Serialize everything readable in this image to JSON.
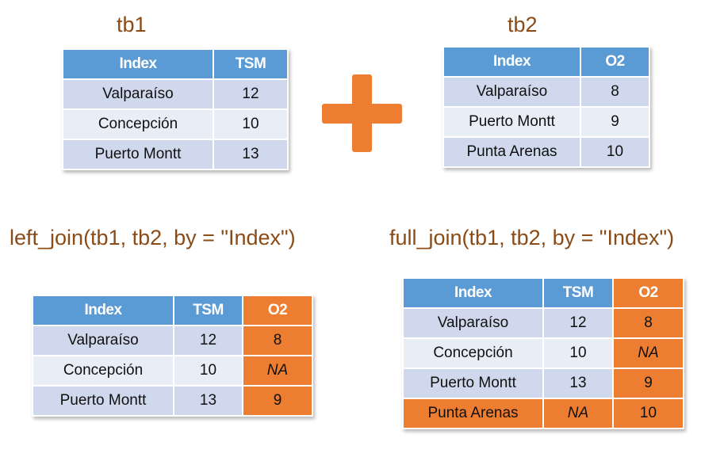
{
  "tb1": {
    "title": "tb1",
    "headers": [
      "Index",
      "TSM"
    ],
    "rows": [
      [
        "Valparaíso",
        "12"
      ],
      [
        "Concepción",
        "10"
      ],
      [
        "Puerto Montt",
        "13"
      ]
    ]
  },
  "tb2": {
    "title": "tb2",
    "headers": [
      "Index",
      "O2"
    ],
    "rows": [
      [
        "Valparaíso",
        "8"
      ],
      [
        "Puerto Montt",
        "9"
      ],
      [
        "Punta Arenas",
        "10"
      ]
    ]
  },
  "left_join": {
    "title": "left_join(tb1, tb2, by = \"Index\")",
    "headers": [
      "Index",
      "TSM",
      "O2"
    ],
    "rows": [
      [
        "Valparaíso",
        "12",
        "8"
      ],
      [
        "Concepción",
        "10",
        "NA"
      ],
      [
        "Puerto Montt",
        "13",
        "9"
      ]
    ]
  },
  "full_join": {
    "title": "full_join(tb1, tb2, by = \"Index\")",
    "headers": [
      "Index",
      "TSM",
      "O2"
    ],
    "rows": [
      [
        "Valparaíso",
        "12",
        "8"
      ],
      [
        "Concepción",
        "10",
        "NA"
      ],
      [
        "Puerto Montt",
        "13",
        "9"
      ],
      [
        "Punta Arenas",
        "NA",
        "10"
      ]
    ]
  },
  "plus_icon": "plus-icon",
  "colors": {
    "header_blue": "#5b9bd5",
    "join_orange": "#ed7d31",
    "cell_dark": "#cfd8ec",
    "cell_light": "#e9edf6",
    "label_brown": "#8a4b17"
  }
}
